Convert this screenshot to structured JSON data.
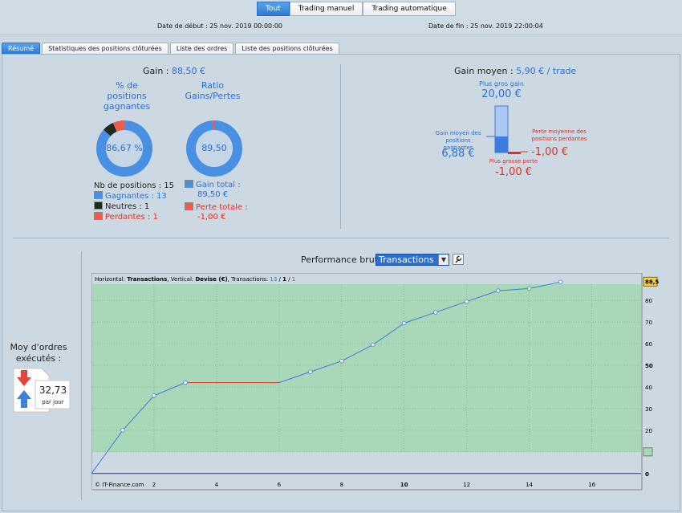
{
  "mode_buttons": [
    {
      "label": "Tout",
      "active": true
    },
    {
      "label": "Trading manuel",
      "active": false
    },
    {
      "label": "Trading automatique",
      "active": false
    }
  ],
  "dates": {
    "start": "Date de début : 25 nov. 2019 00:00:00",
    "end": "Date de fin : 25 nov. 2019 22:00:04"
  },
  "tabs": [
    {
      "label": "Résumé",
      "active": true
    },
    {
      "label": "Statistiques des positions clôturées",
      "active": false
    },
    {
      "label": "Liste des ordres",
      "active": false
    },
    {
      "label": "Liste des positions clôturées",
      "active": false
    }
  ],
  "summary": {
    "gain_label": "Gain : ",
    "gain_value": "88,50 €",
    "pct_title_l1": "% de",
    "pct_title_l2": "positions",
    "pct_title_l3": "gagnantes",
    "pct_value": "86,67 %",
    "ratio_title_l1": "Ratio",
    "ratio_title_l2": "Gains/Pertes",
    "ratio_value": "89,50",
    "nb_positions": "Nb de positions : 15",
    "gagnantes": "Gagnantes : 13",
    "neutres": "Neutres : 1",
    "perdantes": "Perdantes : 1",
    "gain_total_l1": "Gain total :",
    "gain_total_l2": "89,50 €",
    "perte_totale_l1": "Perte totale :",
    "perte_totale_l2": "-1,00 €",
    "win_fraction": 0.8667,
    "neutral_fraction": 0.0667,
    "loss_fraction": 0.0667,
    "ratio_gain_fraction": 0.989,
    "colors": {
      "win": "#4a90e2",
      "neutral": "#1e2b1e",
      "loss": "#f05a4a"
    }
  },
  "gain_moyen": {
    "label": "Gain moyen : ",
    "value": "5,90 € / trade",
    "plus_gros_gain_label": "Plus gros gain",
    "plus_gros_gain_value": "20,00 €",
    "gain_moyen_gagnantes_l1": "Gain moyen des",
    "gain_moyen_gagnantes_l2": "positions gagnantes",
    "gain_moyen_gagnantes_value": "6,88 €",
    "perte_moyenne_l1": "Perte moyenne des",
    "perte_moyenne_l2": "positions perdantes",
    "perte_moyenne_value": "-1,00 €",
    "plus_grosse_perte_label": "Plus grosse perte",
    "plus_grosse_perte_value": "-1,00 €",
    "avg_gain_fraction": 0.344,
    "avg_loss_fraction": 0.05
  },
  "orders": {
    "title_l1": "Moy d'ordres",
    "title_l2": "exécutés :",
    "value": "32,73",
    "unit": "par jour"
  },
  "performance": {
    "label": "Performance brute",
    "select_value": "Transactions"
  },
  "chart_data": {
    "type": "line",
    "header_prefix": "Horizontal: ",
    "header_h": "Transactions",
    "header_mid": ", Vertical: ",
    "header_v": "Devise (€)",
    "header_mid2": ", Transactions: ",
    "header_win": "13",
    "header_sep": " / ",
    "header_neu": "1",
    "header_sep2": " / ",
    "header_loss": "1",
    "copyright": "© IT-Finance.com",
    "x": [
      0,
      1,
      2,
      3,
      6,
      7,
      8,
      9,
      10,
      11,
      12,
      13,
      14,
      15
    ],
    "y": [
      0,
      20,
      36,
      42,
      42,
      47,
      52,
      59.5,
      69.5,
      74.5,
      79.5,
      84.5,
      85.5,
      88.5
    ],
    "loss_segment": [
      3,
      6
    ],
    "x_ticks": [
      2,
      4,
      6,
      8,
      10,
      12,
      14,
      16
    ],
    "y_ticks": [
      0,
      10,
      20,
      30,
      40,
      50,
      60,
      70,
      80
    ],
    "xlim": [
      0,
      17.6
    ],
    "ylim": [
      -7.5,
      92.7
    ],
    "last_value_label": "88,5",
    "colors": {
      "line": "#3c7be0",
      "loss": "#e0302a",
      "area": "#a8d8b8",
      "grid": "#8aa08a"
    }
  }
}
